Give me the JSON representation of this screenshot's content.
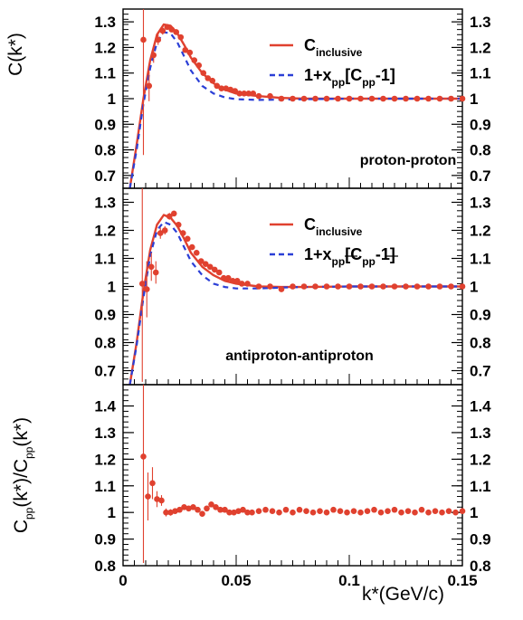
{
  "colors": {
    "data": "#e0412f",
    "inclusive": "#e0412f",
    "model": "#2b3fd6",
    "axis": "#000000"
  },
  "chart_data": [
    {
      "type": "line",
      "panel": "top",
      "ylabel": "C(k*)",
      "xlim": [
        0,
        0.15
      ],
      "ylim": [
        0.65,
        1.35
      ],
      "yticks": [
        "0.7",
        "0.8",
        "0.9",
        "1",
        "1.1",
        "1.2",
        "1.3"
      ],
      "annotation": "proton-proton",
      "legend": {
        "placement": "top-right",
        "entries": [
          {
            "main": "C",
            "sub": "inclusive",
            "rest": ""
          },
          {
            "main": "1+x",
            "sub": "pp",
            "rest": "[C",
            "sub2": "pp",
            "rest2": "-1]"
          }
        ]
      },
      "series": [
        {
          "name": "C_inclusive",
          "style": "line",
          "x": [
            0.003,
            0.006,
            0.009,
            0.012,
            0.015,
            0.018,
            0.021,
            0.024,
            0.027,
            0.03,
            0.035,
            0.04,
            0.045,
            0.05,
            0.06,
            0.07,
            0.08,
            0.1,
            0.12,
            0.15
          ],
          "y": [
            0.65,
            0.82,
            1.0,
            1.15,
            1.25,
            1.29,
            1.285,
            1.255,
            1.21,
            1.16,
            1.1,
            1.06,
            1.035,
            1.02,
            1.01,
            1.003,
            1.0,
            1.0,
            1.0,
            1.0
          ]
        },
        {
          "name": "1+x_pp[C_pp-1]",
          "style": "dashed",
          "x": [
            0.003,
            0.006,
            0.009,
            0.012,
            0.015,
            0.018,
            0.021,
            0.024,
            0.027,
            0.03,
            0.035,
            0.04,
            0.045,
            0.05,
            0.06,
            0.07,
            0.08,
            0.1,
            0.12,
            0.15
          ],
          "y": [
            0.65,
            0.8,
            0.98,
            1.12,
            1.22,
            1.26,
            1.255,
            1.22,
            1.165,
            1.11,
            1.05,
            1.02,
            1.005,
            0.998,
            0.995,
            0.996,
            0.998,
            1.0,
            1.0,
            1.0
          ]
        },
        {
          "name": "data",
          "style": "points",
          "x": [
            0.009,
            0.0115,
            0.0135,
            0.0155,
            0.0175,
            0.0195,
            0.0215,
            0.0235,
            0.0255,
            0.0275,
            0.0295,
            0.0315,
            0.0335,
            0.0355,
            0.0375,
            0.0395,
            0.0415,
            0.0435,
            0.0455,
            0.0475,
            0.0495,
            0.0515,
            0.0535,
            0.0555,
            0.0575,
            0.06,
            0.065,
            0.07,
            0.075,
            0.08,
            0.085,
            0.09,
            0.095,
            0.1,
            0.105,
            0.11,
            0.115,
            0.12,
            0.125,
            0.13,
            0.135,
            0.14,
            0.145,
            0.15
          ],
          "y": [
            1.23,
            1.05,
            1.17,
            1.23,
            1.265,
            1.28,
            1.27,
            1.26,
            1.24,
            1.19,
            1.18,
            1.15,
            1.13,
            1.1,
            1.08,
            1.07,
            1.05,
            1.04,
            1.04,
            1.035,
            1.03,
            1.02,
            1.02,
            1.02,
            1.02,
            1.01,
            1.01,
            1.0,
            1.0,
            1.0,
            1.0,
            1.0,
            1.0,
            1.0,
            1.0,
            1.0,
            1.0,
            1.0,
            1.0,
            1.0,
            1.0,
            1.0,
            1.0,
            1.0
          ],
          "err": [
            0.45,
            0.06,
            0.03,
            0.02,
            0.015,
            0.01,
            0.01,
            0.01,
            0.01,
            0.008,
            0.008,
            0.008,
            0.008,
            0.006,
            0.006,
            0.006,
            0.005,
            0.005,
            0.005,
            0.005,
            0.005,
            0.005,
            0.005,
            0.004,
            0.004,
            0.004,
            0.004,
            0.004,
            0.004,
            0.004,
            0.004,
            0.004,
            0.004,
            0.004,
            0.004,
            0.004,
            0.004,
            0.004,
            0.004,
            0.004,
            0.004,
            0.004,
            0.004,
            0.004
          ]
        }
      ]
    },
    {
      "type": "line",
      "panel": "middle",
      "ylabel": "",
      "xlim": [
        0,
        0.15
      ],
      "ylim": [
        0.65,
        1.35
      ],
      "yticks": [
        "0.7",
        "0.8",
        "0.9",
        "1",
        "1.1",
        "1.2",
        "1.3"
      ],
      "annotation": "antiproton-antiproton",
      "legend": {
        "placement": "top-right",
        "entries": [
          {
            "main": "C",
            "sub": "inclusive",
            "rest": ""
          },
          {
            "main": "1+x",
            "sub": "pp",
            "rest": "[C",
            "sub2": "pp",
            "rest2": "-1]"
          }
        ]
      },
      "series": [
        {
          "name": "C_inclusive",
          "style": "line",
          "x": [
            0.003,
            0.006,
            0.009,
            0.012,
            0.015,
            0.018,
            0.021,
            0.024,
            0.027,
            0.03,
            0.035,
            0.04,
            0.045,
            0.05,
            0.06,
            0.07,
            0.08,
            0.1,
            0.12,
            0.15
          ],
          "y": [
            0.65,
            0.8,
            0.98,
            1.13,
            1.22,
            1.255,
            1.245,
            1.215,
            1.17,
            1.12,
            1.07,
            1.04,
            1.02,
            1.01,
            1.0,
            0.998,
            0.998,
            1.0,
            1.0,
            1.0
          ]
        },
        {
          "name": "1+x_pp[C_pp-1]",
          "style": "dashed",
          "x": [
            0.003,
            0.006,
            0.009,
            0.012,
            0.015,
            0.018,
            0.021,
            0.024,
            0.027,
            0.03,
            0.035,
            0.04,
            0.045,
            0.05,
            0.06,
            0.07,
            0.08,
            0.1,
            0.12,
            0.15
          ],
          "y": [
            0.65,
            0.79,
            0.96,
            1.11,
            1.2,
            1.23,
            1.22,
            1.19,
            1.14,
            1.09,
            1.04,
            1.01,
            0.998,
            0.993,
            0.993,
            0.996,
            0.998,
            1.0,
            1.0,
            1.0
          ]
        },
        {
          "name": "data",
          "style": "points",
          "x": [
            0.0085,
            0.0105,
            0.0125,
            0.0145,
            0.0165,
            0.0185,
            0.0205,
            0.0225,
            0.0245,
            0.0265,
            0.0285,
            0.0305,
            0.0325,
            0.0345,
            0.0365,
            0.0385,
            0.0405,
            0.0425,
            0.0445,
            0.0465,
            0.0485,
            0.0505,
            0.0525,
            0.055,
            0.06,
            0.065,
            0.07,
            0.075,
            0.08,
            0.085,
            0.09,
            0.095,
            0.1,
            0.105,
            0.11,
            0.115,
            0.12,
            0.125,
            0.13,
            0.135,
            0.14,
            0.145,
            0.15
          ],
          "y": [
            1.01,
            0.99,
            1.07,
            1.05,
            1.19,
            1.2,
            1.25,
            1.26,
            1.22,
            1.19,
            1.17,
            1.14,
            1.12,
            1.09,
            1.08,
            1.07,
            1.06,
            1.05,
            1.03,
            1.03,
            1.02,
            1.02,
            1.01,
            1.01,
            1.0,
            1.0,
            0.99,
            1.0,
            1.0,
            1.0,
            1.0,
            1.0,
            1.0,
            1.0,
            1.0,
            1.0,
            1.0,
            1.0,
            1.0,
            1.0,
            1.0,
            1.0,
            1.0
          ],
          "err": [
            0.35,
            0.1,
            0.05,
            0.04,
            0.02,
            0.015,
            0.012,
            0.01,
            0.01,
            0.01,
            0.008,
            0.008,
            0.008,
            0.007,
            0.007,
            0.006,
            0.006,
            0.006,
            0.006,
            0.005,
            0.005,
            0.005,
            0.005,
            0.005,
            0.005,
            0.005,
            0.005,
            0.005,
            0.005,
            0.005,
            0.005,
            0.005,
            0.005,
            0.005,
            0.005,
            0.005,
            0.005,
            0.005,
            0.005,
            0.005,
            0.005,
            0.005,
            0.005
          ]
        }
      ]
    },
    {
      "type": "scatter",
      "panel": "bottom",
      "ylabel_main": "C",
      "ylabel_sub": "pp",
      "ylabel_mid": "(k*)/C",
      "ylabel_sub2": "pp",
      "ylabel_end": "(k*)",
      "xlabel": "k*(GeV/c)",
      "xlim": [
        0,
        0.15
      ],
      "ylim": [
        0.8,
        1.48
      ],
      "xticks": [
        "0",
        "0.05",
        "0.1",
        "0.15"
      ],
      "yticks": [
        "0.8",
        "0.9",
        "1",
        "1.1",
        "1.2",
        "1.3",
        "1.4"
      ],
      "series": [
        {
          "name": "ratio",
          "style": "points",
          "x": [
            0.009,
            0.011,
            0.013,
            0.015,
            0.017,
            0.019,
            0.021,
            0.023,
            0.025,
            0.027,
            0.029,
            0.031,
            0.033,
            0.035,
            0.037,
            0.039,
            0.041,
            0.043,
            0.045,
            0.047,
            0.049,
            0.051,
            0.053,
            0.055,
            0.057,
            0.06,
            0.063,
            0.066,
            0.069,
            0.072,
            0.075,
            0.078,
            0.081,
            0.084,
            0.087,
            0.09,
            0.093,
            0.096,
            0.099,
            0.102,
            0.105,
            0.108,
            0.111,
            0.114,
            0.117,
            0.12,
            0.123,
            0.126,
            0.129,
            0.132,
            0.135,
            0.138,
            0.141,
            0.144,
            0.147,
            0.15
          ],
          "y": [
            1.21,
            1.06,
            1.11,
            1.05,
            1.045,
            1.0,
            1.0,
            1.005,
            1.01,
            1.02,
            1.015,
            1.02,
            1.01,
            0.995,
            1.015,
            1.03,
            1.02,
            1.01,
            1.01,
            1.0,
            1.0,
            1.005,
            1.01,
            1.0,
            1.0,
            1.005,
            1.01,
            1.005,
            1.0,
            1.01,
            1.0,
            1.01,
            1.005,
            1.0,
            1.005,
            1.0,
            1.01,
            1.005,
            1.0,
            1.005,
            1.0,
            1.005,
            1.01,
            1.0,
            1.005,
            1.01,
            1.0,
            1.005,
            1.0,
            1.01,
            1.0,
            1.005,
            1.0,
            1.005,
            1.0,
            1.005
          ],
          "err": [
            0.4,
            0.09,
            0.06,
            0.03,
            0.02,
            0.015,
            0.012,
            0.01,
            0.01,
            0.008,
            0.008,
            0.008,
            0.007,
            0.007,
            0.007,
            0.006,
            0.006,
            0.006,
            0.006,
            0.005,
            0.005,
            0.005,
            0.005,
            0.005,
            0.005,
            0.005,
            0.005,
            0.005,
            0.005,
            0.005,
            0.005,
            0.005,
            0.005,
            0.005,
            0.005,
            0.005,
            0.005,
            0.005,
            0.005,
            0.005,
            0.005,
            0.005,
            0.005,
            0.005,
            0.005,
            0.005,
            0.005,
            0.005,
            0.005,
            0.005,
            0.005,
            0.005,
            0.005,
            0.005,
            0.005,
            0.005
          ]
        }
      ]
    }
  ]
}
